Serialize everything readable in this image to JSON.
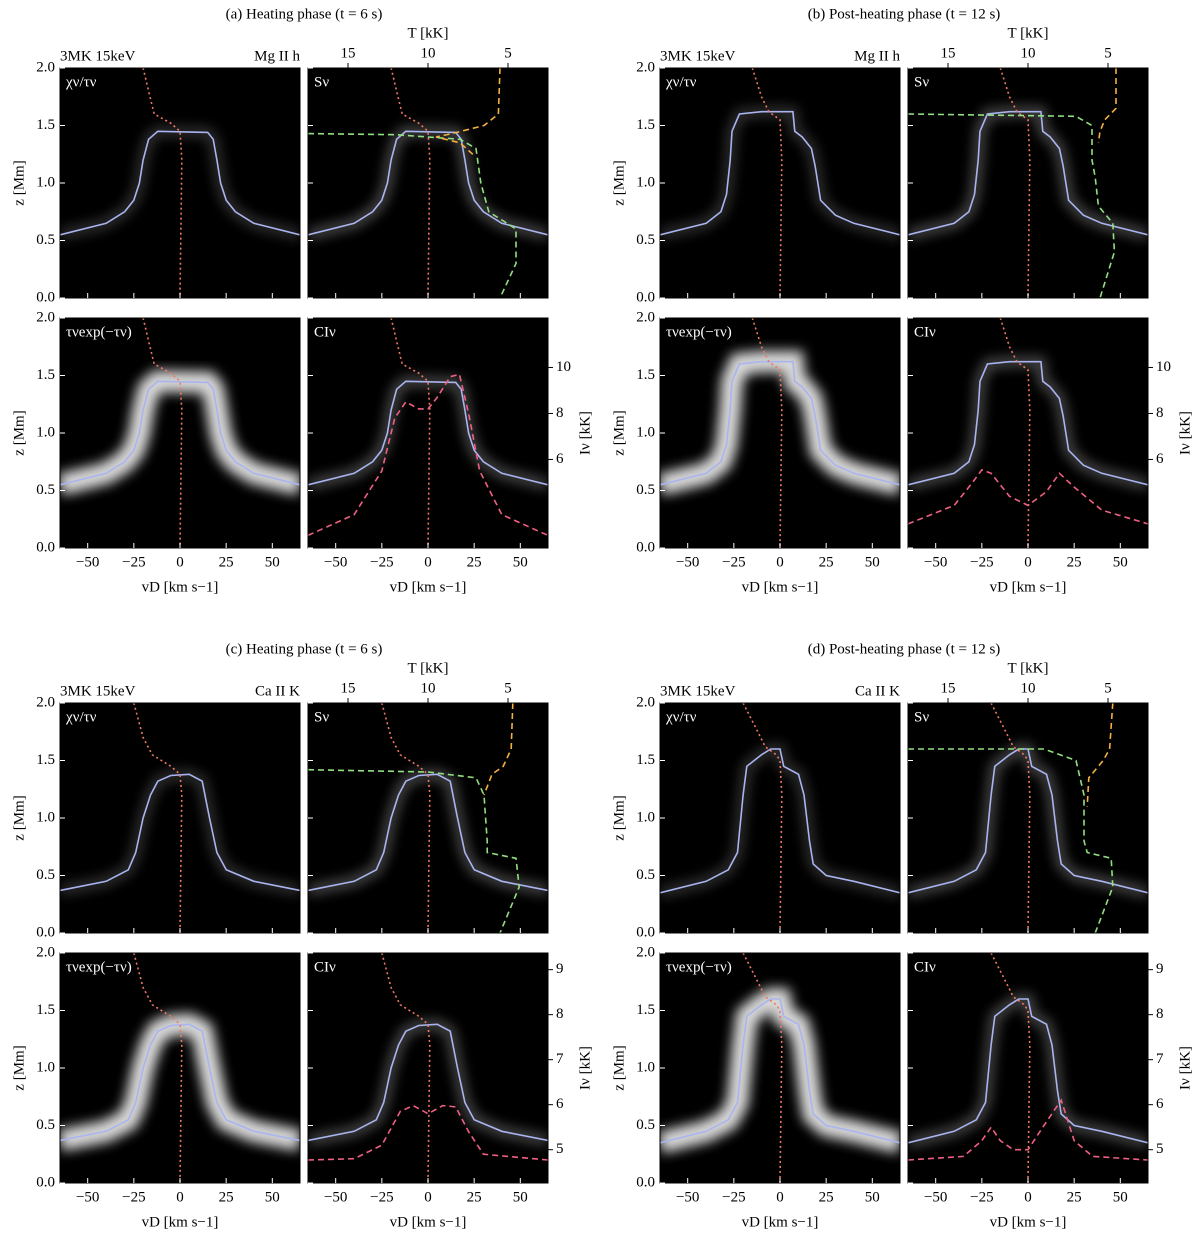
{
  "chart_data": [
    {
      "type": "heatmap",
      "title": "(a) Heating phase (t = 6 s)",
      "model": "3MK 15keV",
      "line": "Mg II h",
      "panels": [
        {
          "label": "χν/τν"
        },
        {
          "label": "Sν"
        },
        {
          "label": "τνexp(−τν)"
        },
        {
          "label": "CIν"
        }
      ],
      "xlabel": "vD [km s−1]",
      "ylabel": "z [Mm]",
      "tlabel": "T [kK]",
      "ilabel": "Iν [kK]",
      "xlim": [
        -65,
        65
      ],
      "xticks": [
        {
          "value": -50,
          "label": "−50"
        },
        {
          "value": -25,
          "label": "−25"
        },
        0,
        25,
        50
      ],
      "ylim": [
        0,
        2
      ],
      "yticks": [
        {
          "value": 0,
          "label": "0.0"
        },
        {
          "value": 0.5,
          "label": "0.5"
        },
        {
          "value": 1,
          "label": "1.0"
        },
        {
          "value": 1.5,
          "label": "1.5"
        },
        {
          "value": 2,
          "label": "2.0"
        }
      ],
      "tlim": [
        17.5,
        2.5
      ],
      "tticks": [
        15,
        10,
        5
      ],
      "ilim": [
        2.15,
        12.15
      ],
      "iticks": [
        6,
        8,
        10
      ],
      "velocity": {
        "color": "#a9b4f0",
        "x": [
          -65,
          -40,
          -30,
          -25,
          -22,
          -20,
          -17,
          -12,
          15,
          18,
          20,
          22,
          25,
          30,
          40,
          65
        ],
        "z": [
          0.55,
          0.65,
          0.75,
          0.85,
          1.0,
          1.2,
          1.38,
          1.45,
          1.44,
          1.38,
          1.2,
          1.0,
          0.85,
          0.75,
          0.65,
          0.55
        ]
      },
      "dotted": {
        "color": "#f07860",
        "x": [
          -20,
          -17,
          -14,
          -5,
          0,
          1,
          0
        ],
        "z": [
          2.0,
          1.8,
          1.6,
          1.52,
          1.45,
          1.2,
          0.0
        ]
      },
      "source": {
        "color": "#90e080",
        "t": [
          17.5,
          12,
          8,
          7,
          6.7,
          6.2,
          4.5,
          4.5,
          5.5
        ],
        "z": [
          1.43,
          1.42,
          1.38,
          1.3,
          1.0,
          0.75,
          0.6,
          0.3,
          0.0
        ]
      },
      "source2": {
        "color": "#f5b040",
        "t": [
          5.5,
          5.6,
          6.5,
          8.5,
          9.5,
          8,
          7.2
        ],
        "z": [
          2.0,
          1.6,
          1.5,
          1.43,
          1.4,
          1.35,
          1.25
        ]
      },
      "intensity": {
        "color": "#f06080",
        "x": [
          -65,
          -40,
          -25,
          -18,
          -12,
          -5,
          0,
          5,
          12,
          17,
          22,
          28,
          40,
          65
        ],
        "values": [
          2.7,
          3.6,
          5.5,
          7.8,
          8.5,
          8.2,
          8.2,
          8.7,
          9.6,
          9.7,
          8,
          5.5,
          3.6,
          2.7
        ]
      }
    },
    {
      "type": "heatmap",
      "title": "(b) Post-heating phase (t = 12 s)",
      "model": "3MK 15keV",
      "line": "Mg II h",
      "panels": [
        {
          "label": "χν/τν"
        },
        {
          "label": "Sν"
        },
        {
          "label": "τνexp(−τν)"
        },
        {
          "label": "CIν"
        }
      ],
      "xlabel": "vD [km s−1]",
      "ylabel": "z [Mm]",
      "tlabel": "T [kK]",
      "ilabel": "Iν [kK]",
      "xlim": [
        -65,
        65
      ],
      "xticks": [
        {
          "value": -50,
          "label": "−50"
        },
        {
          "value": -25,
          "label": "−25"
        },
        0,
        25,
        50
      ],
      "ylim": [
        0,
        2
      ],
      "yticks": [
        {
          "value": 0,
          "label": "0.0"
        },
        {
          "value": 0.5,
          "label": "0.5"
        },
        {
          "value": 1,
          "label": "1.0"
        },
        {
          "value": 1.5,
          "label": "1.5"
        },
        {
          "value": 2,
          "label": "2.0"
        }
      ],
      "tlim": [
        17.5,
        2.5
      ],
      "tticks": [
        15,
        10,
        5
      ],
      "ilim": [
        2.15,
        12.15
      ],
      "iticks": [
        6,
        8,
        10
      ],
      "velocity": {
        "color": "#a9b4f0",
        "x": [
          -65,
          -40,
          -32,
          -29,
          -27,
          -26,
          -22,
          -10,
          7,
          8,
          12,
          17,
          19,
          22,
          30,
          40,
          65
        ],
        "z": [
          0.55,
          0.65,
          0.75,
          0.9,
          1.2,
          1.45,
          1.6,
          1.62,
          1.62,
          1.45,
          1.4,
          1.3,
          1.15,
          0.85,
          0.72,
          0.65,
          0.55
        ]
      },
      "dotted": {
        "color": "#f07860",
        "x": [
          -15,
          -10,
          -6,
          0,
          1,
          0
        ],
        "z": [
          2.0,
          1.75,
          1.62,
          1.55,
          1.2,
          0.0
        ]
      },
      "source": {
        "color": "#90e080",
        "t": [
          17.5,
          7,
          6,
          6,
          5.8,
          5.6,
          4.7,
          4.6,
          5.5
        ],
        "z": [
          1.6,
          1.58,
          1.5,
          1.2,
          1.05,
          0.8,
          0.65,
          0.4,
          0.0
        ]
      },
      "source2": {
        "color": "#f5b040",
        "t": [
          4.5,
          4.5,
          5.2,
          5.5,
          5.6
        ],
        "z": [
          2.0,
          1.65,
          1.55,
          1.45,
          1.35
        ]
      },
      "intensity": {
        "color": "#f06080",
        "x": [
          -65,
          -40,
          -30,
          -25,
          -20,
          -10,
          0,
          10,
          17,
          25,
          40,
          65
        ],
        "values": [
          3.2,
          4.0,
          5.0,
          5.55,
          5.4,
          4.4,
          4.0,
          4.6,
          5.4,
          4.8,
          3.8,
          3.2
        ]
      }
    },
    {
      "type": "heatmap",
      "title": "(c) Heating phase (t = 6 s)",
      "model": "3MK 15keV",
      "line": "Ca II K",
      "panels": [
        {
          "label": "χν/τν"
        },
        {
          "label": "Sν"
        },
        {
          "label": "τνexp(−τν)"
        },
        {
          "label": "CIν"
        }
      ],
      "xlabel": "vD [km s−1]",
      "ylabel": "z [Mm]",
      "tlabel": "T [kK]",
      "ilabel": "Iν [kK]",
      "xlim": [
        -65,
        65
      ],
      "xticks": [
        {
          "value": -50,
          "label": "−50"
        },
        {
          "value": -25,
          "label": "−25"
        },
        0,
        25,
        50
      ],
      "ylim": [
        0,
        2
      ],
      "yticks": [
        {
          "value": 0,
          "label": "0.0"
        },
        {
          "value": 0.5,
          "label": "0.5"
        },
        {
          "value": 1,
          "label": "1.0"
        },
        {
          "value": 1.5,
          "label": "1.5"
        },
        {
          "value": 2,
          "label": "2.0"
        }
      ],
      "tlim": [
        17.5,
        2.5
      ],
      "tticks": [
        15,
        10,
        5
      ],
      "ilim": [
        4.26,
        9.37
      ],
      "iticks": [
        5,
        6,
        7,
        8,
        9
      ],
      "velocity": {
        "color": "#a9b4f0",
        "x": [
          -65,
          -40,
          -28,
          -24,
          -20,
          -16,
          -12,
          -5,
          5,
          12,
          16,
          20,
          25,
          40,
          65
        ],
        "z": [
          0.37,
          0.45,
          0.55,
          0.7,
          1.0,
          1.2,
          1.32,
          1.37,
          1.38,
          1.32,
          1.0,
          0.7,
          0.55,
          0.45,
          0.37
        ]
      },
      "dotted": {
        "color": "#f07860",
        "x": [
          -25,
          -20,
          -15,
          -5,
          0,
          1,
          0
        ],
        "z": [
          2.0,
          1.7,
          1.55,
          1.45,
          1.38,
          1.2,
          0.0
        ]
      },
      "source": {
        "color": "#90e080",
        "t": [
          17.5,
          10,
          7,
          6.5,
          6.3,
          6.3,
          4.5,
          4.3,
          5.5
        ],
        "z": [
          1.42,
          1.4,
          1.35,
          1.2,
          0.8,
          0.7,
          0.65,
          0.4,
          0.0
        ]
      },
      "source2": {
        "color": "#f5b040",
        "t": [
          4.7,
          4.8,
          5.3,
          6,
          6.5
        ],
        "z": [
          2.0,
          1.6,
          1.45,
          1.38,
          1.2
        ]
      },
      "intensity": {
        "color": "#f06080",
        "x": [
          -65,
          -40,
          -25,
          -15,
          -8,
          0,
          8,
          15,
          22,
          30,
          65
        ],
        "values": [
          4.77,
          4.8,
          5.1,
          5.85,
          5.98,
          5.8,
          5.98,
          5.95,
          5.4,
          4.9,
          4.77
        ]
      }
    },
    {
      "type": "heatmap",
      "title": "(d) Post-heating phase (t = 12 s)",
      "model": "3MK 15keV",
      "line": "Ca II K",
      "panels": [
        {
          "label": "χν/τν"
        },
        {
          "label": "Sν"
        },
        {
          "label": "τνexp(−τν)"
        },
        {
          "label": "CIν"
        }
      ],
      "xlabel": "vD [km s−1]",
      "ylabel": "z [Mm]",
      "tlabel": "T [kK]",
      "ilabel": "Iν [kK]",
      "xlim": [
        -65,
        65
      ],
      "xticks": [
        {
          "value": -50,
          "label": "−50"
        },
        {
          "value": -25,
          "label": "−25"
        },
        0,
        25,
        50
      ],
      "ylim": [
        0,
        2
      ],
      "yticks": [
        {
          "value": 0,
          "label": "0.0"
        },
        {
          "value": 0.5,
          "label": "0.5"
        },
        {
          "value": 1,
          "label": "1.0"
        },
        {
          "value": 1.5,
          "label": "1.5"
        },
        {
          "value": 2,
          "label": "2.0"
        }
      ],
      "tlim": [
        17.5,
        2.5
      ],
      "tticks": [
        15,
        10,
        5
      ],
      "ilim": [
        4.26,
        9.37
      ],
      "iticks": [
        5,
        6,
        7,
        8,
        9
      ],
      "velocity": {
        "color": "#a9b4f0",
        "x": [
          -65,
          -40,
          -28,
          -23,
          -20,
          -18,
          -10,
          -5,
          0,
          2,
          10,
          13,
          16,
          18,
          25,
          40,
          65
        ],
        "z": [
          0.35,
          0.45,
          0.55,
          0.7,
          1.2,
          1.45,
          1.55,
          1.6,
          1.6,
          1.45,
          1.38,
          1.2,
          0.8,
          0.6,
          0.5,
          0.45,
          0.35
        ]
      },
      "dotted": {
        "color": "#f07860",
        "x": [
          -20,
          -12,
          -8,
          -2,
          0,
          1,
          0
        ],
        "z": [
          2.0,
          1.75,
          1.62,
          1.55,
          1.5,
          1.2,
          0.0
        ]
      },
      "source": {
        "color": "#90e080",
        "t": [
          17.5,
          9,
          7,
          6.5,
          6.5,
          6.3,
          4.8,
          4.7,
          5.8
        ],
        "z": [
          1.6,
          1.6,
          1.5,
          1.2,
          0.8,
          0.7,
          0.65,
          0.4,
          0.0
        ]
      },
      "source2": {
        "color": "#f5b040",
        "t": [
          4.7,
          4.9,
          5.3,
          6.2,
          6.3
        ],
        "z": [
          2.0,
          1.6,
          1.5,
          1.35,
          1.1
        ]
      },
      "intensity": {
        "color": "#f06080",
        "x": [
          -65,
          -35,
          -25,
          -20,
          -15,
          -8,
          0,
          8,
          18,
          25,
          35,
          65
        ],
        "values": [
          4.77,
          4.85,
          5.2,
          5.5,
          5.2,
          5.0,
          5.0,
          5.5,
          6.1,
          5.2,
          4.85,
          4.77
        ]
      }
    }
  ]
}
